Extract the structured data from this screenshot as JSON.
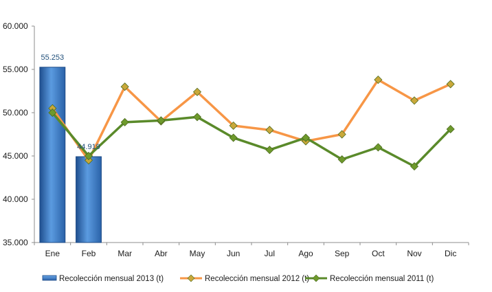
{
  "chart_data": {
    "type": "bar",
    "title": "",
    "xlabel": "",
    "ylabel": "",
    "categories": [
      "Ene",
      "Feb",
      "Mar",
      "Abr",
      "May",
      "Jun",
      "Jul",
      "Ago",
      "Sep",
      "Oct",
      "Nov",
      "Dic"
    ],
    "ylim": [
      35000,
      60000
    ],
    "yticks": [
      35000,
      40000,
      45000,
      50000,
      55000,
      60000
    ],
    "ytick_labels": [
      "35.000",
      "40.000",
      "45.000",
      "50.000",
      "55.000",
      "60.000"
    ],
    "grid": false,
    "legend_position": "bottom",
    "series": [
      {
        "name": "Recolección mensual 2013 (t)",
        "type": "bar",
        "color": "#3a78c3",
        "values": [
          55253,
          44919,
          null,
          null,
          null,
          null,
          null,
          null,
          null,
          null,
          null,
          null
        ],
        "data_labels": [
          "55.253",
          "44.919"
        ]
      },
      {
        "name": "Recolección mensual 2012 (t)",
        "type": "line",
        "color": "#f79646",
        "marker_color": "#c9a83a",
        "values": [
          50500,
          44500,
          53000,
          49000,
          52400,
          48500,
          48000,
          46700,
          47500,
          53800,
          51400,
          53300
        ]
      },
      {
        "name": "Recolección mensual 2011 (t)",
        "type": "line",
        "color": "#5a8a2a",
        "marker_color": "#6e9a2c",
        "values": [
          50000,
          45000,
          48900,
          49100,
          49500,
          47100,
          45700,
          47100,
          44600,
          46000,
          43800,
          48100
        ]
      }
    ]
  }
}
